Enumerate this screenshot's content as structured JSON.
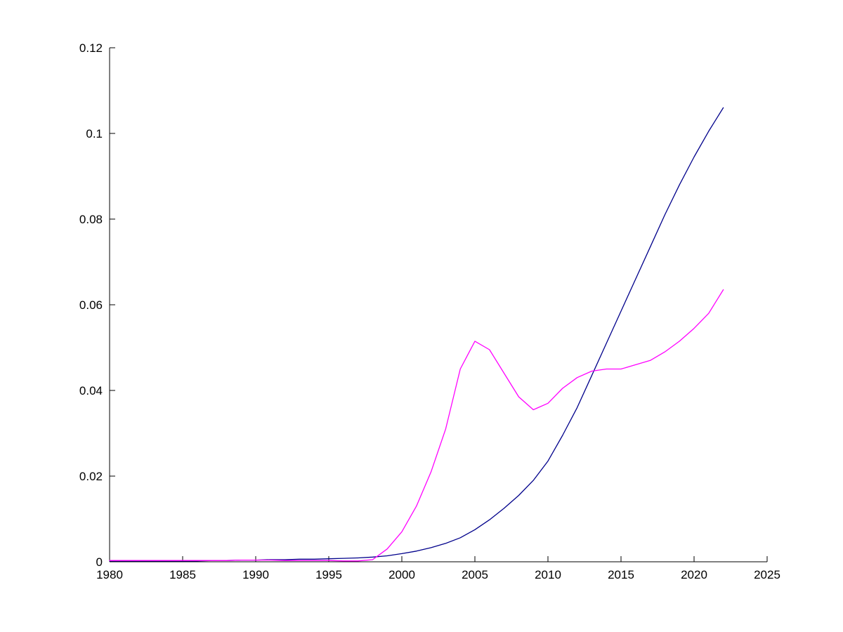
{
  "figure": {
    "background": "#ffffff"
  },
  "chart_data": {
    "type": "line",
    "title": "",
    "xlabel": "",
    "ylabel": "",
    "xlim": [
      1980,
      2025
    ],
    "ylim": [
      0,
      0.12
    ],
    "xticks": [
      1980,
      1985,
      1990,
      1995,
      2000,
      2005,
      2010,
      2015,
      2020,
      2025
    ],
    "yticks": [
      0,
      0.02,
      0.04,
      0.06,
      0.08,
      0.1,
      0.12
    ],
    "ytick_labels": [
      "0",
      "0.02",
      "0.04",
      "0.06",
      "0.08",
      "0.1",
      "0.12"
    ],
    "grid": false,
    "legend": "none",
    "axis_color": "#000000",
    "x": [
      1980,
      1981,
      1982,
      1983,
      1984,
      1985,
      1986,
      1987,
      1988,
      1989,
      1990,
      1991,
      1992,
      1993,
      1994,
      1995,
      1996,
      1997,
      1998,
      1999,
      2000,
      2001,
      2002,
      2003,
      2004,
      2005,
      2006,
      2007,
      2008,
      2009,
      2010,
      2011,
      2012,
      2013,
      2014,
      2015,
      2016,
      2017,
      2018,
      2019,
      2020,
      2021,
      2022
    ],
    "series": [
      {
        "name": "blue-series",
        "color": "#00008b",
        "values": [
          0.0002,
          0.0002,
          0.0002,
          0.0002,
          0.0002,
          0.0002,
          0.0002,
          0.0003,
          0.0003,
          0.0004,
          0.0004,
          0.0005,
          0.0005,
          0.0006,
          0.0006,
          0.0007,
          0.0008,
          0.0009,
          0.0011,
          0.0014,
          0.0019,
          0.0025,
          0.0033,
          0.0043,
          0.0056,
          0.0075,
          0.0098,
          0.0125,
          0.0155,
          0.019,
          0.0235,
          0.0295,
          0.036,
          0.0435,
          0.051,
          0.0585,
          0.066,
          0.0735,
          0.081,
          0.088,
          0.0945,
          0.1005,
          0.106
        ]
      },
      {
        "name": "magenta-series",
        "color": "#ff00ff",
        "values": [
          0.0003,
          0.0003,
          0.0003,
          0.0003,
          0.0003,
          0.0003,
          0.0003,
          0.0003,
          0.0003,
          0.0004,
          0.0004,
          0.0004,
          0.0003,
          0.0003,
          0.0003,
          0.0003,
          0.0002,
          0.0002,
          0.0005,
          0.003,
          0.007,
          0.013,
          0.021,
          0.031,
          0.045,
          0.0515,
          0.0495,
          0.044,
          0.0385,
          0.0355,
          0.037,
          0.0405,
          0.043,
          0.0445,
          0.045,
          0.045,
          0.046,
          0.047,
          0.049,
          0.0515,
          0.0545,
          0.058,
          0.0635
        ]
      }
    ]
  }
}
